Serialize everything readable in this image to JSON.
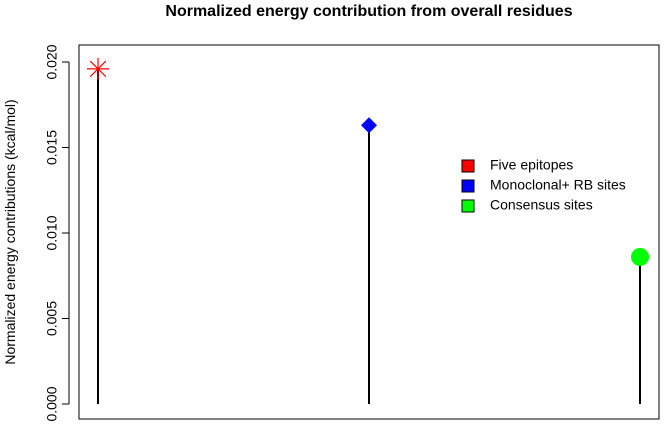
{
  "chart_data": {
    "type": "lollipop",
    "title": "Normalized energy contribution from  overall residues",
    "xlabel": "",
    "ylabel": "Normalized energy contributions (kcal/mol)",
    "ylim": [
      0.0,
      0.0202
    ],
    "yticks": [
      "0.000",
      "0.005",
      "0.010",
      "0.015",
      "0.020"
    ],
    "ytick_values": [
      0.0,
      0.005,
      0.01,
      0.015,
      0.02
    ],
    "series": [
      {
        "name": "Five epitopes",
        "value": 0.0196,
        "marker": "asterisk",
        "color": "#ff0000"
      },
      {
        "name": "Monoclonal+ RB sites",
        "value": 0.0163,
        "marker": "diamond",
        "color": "#0000ff"
      },
      {
        "name": "Consensus sites",
        "value": 0.0086,
        "marker": "circle",
        "color": "#00ff00"
      }
    ],
    "legend_position": "right",
    "grid": false
  }
}
